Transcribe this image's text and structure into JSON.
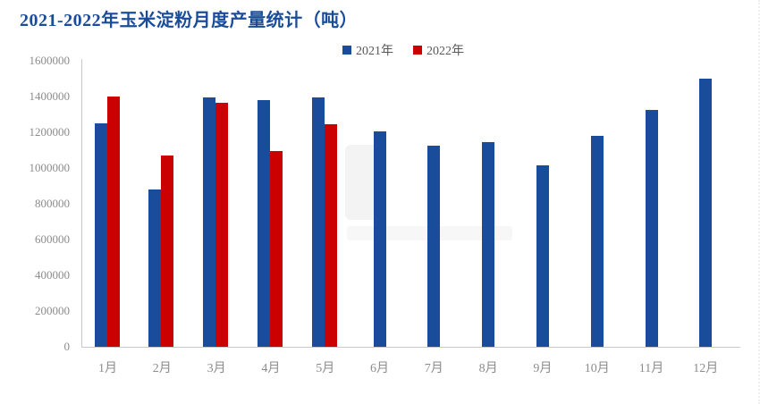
{
  "title": "2021-2022年玉米淀粉月度产量统计（吨）",
  "legend": [
    {
      "label": "2021年",
      "color": "#1A4C9C"
    },
    {
      "label": "2022年",
      "color": "#CB0000"
    }
  ],
  "colors": {
    "title": "#1A4C9C",
    "series_2021": "#1A4C9C",
    "series_2022": "#CB0000",
    "axis_line": "#C8C8C8",
    "tick_label": "#8C8C8C",
    "legend_text": "#595959"
  },
  "chart_data": {
    "type": "bar",
    "title": "2021-2022年玉米淀粉月度产量统计（吨）",
    "categories": [
      "1月",
      "2月",
      "3月",
      "4月",
      "5月",
      "6月",
      "7月",
      "8月",
      "9月",
      "10月",
      "11月",
      "12月"
    ],
    "series": [
      {
        "name": "2021年",
        "color": "#1A4C9C",
        "values": [
          1250000,
          880000,
          1395000,
          1380000,
          1395000,
          1205000,
          1125000,
          1145000,
          1015000,
          1180000,
          1325000,
          1500000
        ]
      },
      {
        "name": "2022年",
        "color": "#CB0000",
        "values": [
          1400000,
          1070000,
          1365000,
          1095000,
          1245000,
          null,
          null,
          null,
          null,
          null,
          null,
          null
        ]
      }
    ],
    "xlabel": "",
    "ylabel": "",
    "ylim": [
      0,
      1600000
    ],
    "ytick_values": [
      0,
      200000,
      400000,
      600000,
      800000,
      1000000,
      1200000,
      1400000,
      1600000
    ],
    "grid": false,
    "legend_position": "top-center"
  }
}
